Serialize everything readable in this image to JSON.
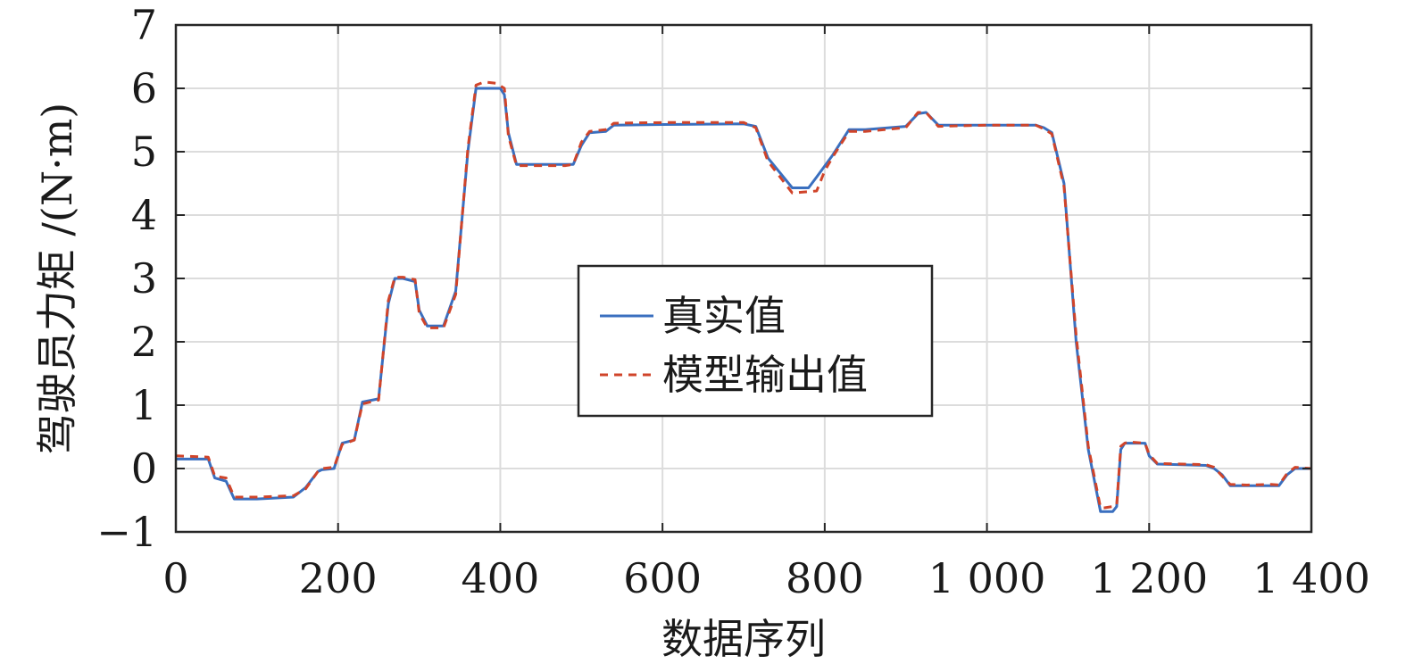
{
  "chart_data": {
    "type": "line",
    "title": "",
    "xlabel": "数据序列",
    "ylabel": "驾驶员力矩 /(N·m)",
    "xlim": [
      0,
      1400
    ],
    "ylim": [
      -1,
      7
    ],
    "x_ticks": [
      0,
      200,
      400,
      600,
      800,
      1000,
      1200,
      1400
    ],
    "x_tick_labels": [
      "0",
      "200",
      "400",
      "600",
      "800",
      "1 000",
      "1 200",
      "1 400"
    ],
    "y_ticks": [
      -1,
      0,
      1,
      2,
      3,
      4,
      5,
      6,
      7
    ],
    "y_tick_labels": [
      "−1",
      "0",
      "1",
      "2",
      "3",
      "4",
      "5",
      "6",
      "7"
    ],
    "grid": true,
    "legend_position": "center",
    "series": [
      {
        "name": "真实值",
        "color": "#3a6fbf",
        "style": "solid",
        "x": [
          0,
          40,
          48,
          62,
          72,
          100,
          145,
          160,
          175,
          180,
          195,
          205,
          220,
          230,
          250,
          262,
          270,
          280,
          295,
          300,
          310,
          330,
          345,
          360,
          370,
          380,
          400,
          405,
          410,
          420,
          430,
          480,
          490,
          500,
          510,
          530,
          540,
          600,
          700,
          715,
          730,
          760,
          780,
          790,
          810,
          830,
          850,
          900,
          915,
          925,
          940,
          1000,
          1060,
          1070,
          1080,
          1095,
          1110,
          1125,
          1140,
          1145,
          1155,
          1160,
          1165,
          1170,
          1175,
          1195,
          1200,
          1210,
          1270,
          1280,
          1290,
          1300,
          1320,
          1350,
          1360,
          1370,
          1380,
          1400
        ],
        "y": [
          0.15,
          0.15,
          -0.15,
          -0.2,
          -0.48,
          -0.48,
          -0.45,
          -0.3,
          -0.05,
          -0.02,
          0.0,
          0.4,
          0.45,
          1.05,
          1.1,
          2.6,
          3.0,
          3.0,
          2.95,
          2.5,
          2.25,
          2.25,
          2.8,
          5.0,
          6.0,
          6.0,
          6.0,
          5.9,
          5.3,
          4.8,
          4.8,
          4.8,
          4.8,
          5.1,
          5.3,
          5.32,
          5.42,
          5.43,
          5.44,
          5.4,
          4.9,
          4.43,
          4.43,
          4.6,
          4.95,
          5.35,
          5.35,
          5.4,
          5.6,
          5.62,
          5.42,
          5.42,
          5.42,
          5.38,
          5.3,
          4.5,
          2.0,
          0.3,
          -0.68,
          -0.68,
          -0.68,
          -0.6,
          0.3,
          0.4,
          0.4,
          0.4,
          0.2,
          0.07,
          0.05,
          0.0,
          -0.1,
          -0.27,
          -0.27,
          -0.27,
          -0.27,
          -0.1,
          0.0,
          0.0
        ]
      },
      {
        "name": "模型输出值",
        "color": "#d0442a",
        "style": "dashed",
        "x": [
          0,
          40,
          48,
          62,
          72,
          100,
          145,
          160,
          175,
          180,
          195,
          205,
          220,
          230,
          250,
          262,
          270,
          280,
          295,
          300,
          310,
          330,
          345,
          360,
          370,
          380,
          395,
          405,
          410,
          420,
          430,
          480,
          490,
          500,
          510,
          530,
          540,
          600,
          700,
          715,
          730,
          760,
          790,
          800,
          810,
          830,
          850,
          900,
          915,
          925,
          940,
          1000,
          1060,
          1070,
          1080,
          1095,
          1110,
          1125,
          1140,
          1145,
          1155,
          1160,
          1165,
          1170,
          1175,
          1195,
          1200,
          1210,
          1270,
          1280,
          1290,
          1300,
          1320,
          1350,
          1360,
          1370,
          1380,
          1400
        ],
        "y": [
          0.2,
          0.18,
          -0.12,
          -0.15,
          -0.45,
          -0.45,
          -0.43,
          -0.32,
          -0.05,
          0.0,
          0.02,
          0.38,
          0.45,
          1.02,
          1.08,
          2.65,
          3.02,
          3.02,
          2.98,
          2.45,
          2.22,
          2.22,
          2.75,
          5.05,
          6.05,
          6.1,
          6.08,
          6.0,
          5.25,
          4.78,
          4.78,
          4.78,
          4.8,
          5.15,
          5.32,
          5.35,
          5.45,
          5.46,
          5.46,
          5.38,
          4.85,
          4.35,
          4.38,
          4.7,
          4.92,
          5.32,
          5.32,
          5.38,
          5.62,
          5.62,
          5.4,
          5.42,
          5.42,
          5.36,
          5.28,
          4.45,
          2.1,
          0.35,
          -0.62,
          -0.62,
          -0.6,
          -0.58,
          0.35,
          0.4,
          0.42,
          0.4,
          0.22,
          0.08,
          0.06,
          0.02,
          -0.12,
          -0.25,
          -0.26,
          -0.25,
          -0.26,
          -0.08,
          0.02,
          0.0
        ]
      }
    ]
  }
}
